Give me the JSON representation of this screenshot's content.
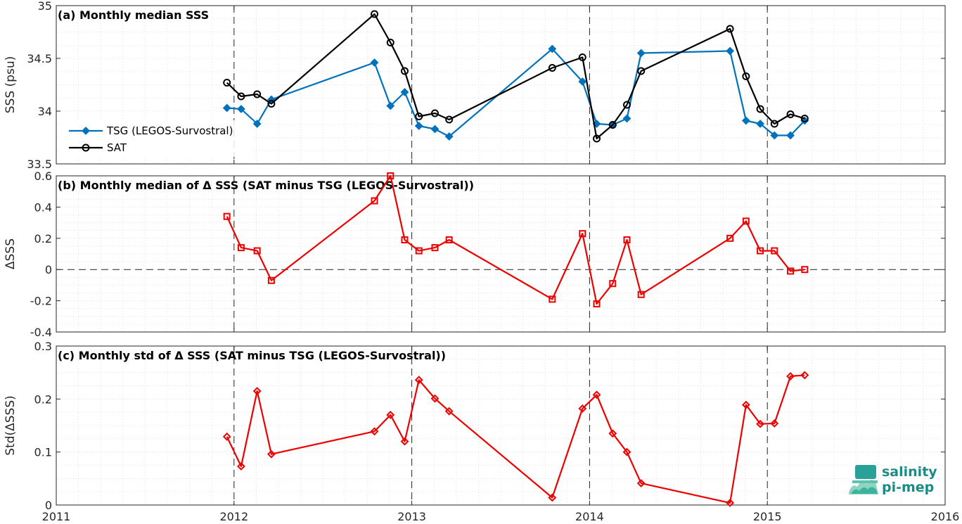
{
  "chart_data": [
    {
      "type": "line",
      "title": "(a) Monthly median SSS",
      "ylabel": "SSS (psu)",
      "xlabel": "",
      "xlim": [
        2011,
        2016
      ],
      "ylim": [
        33.5,
        35
      ],
      "xticks": [
        "2011",
        "2012",
        "2013",
        "2014",
        "2015",
        "2016"
      ],
      "yticks": [
        "33.5",
        "34",
        "34.5",
        "35"
      ],
      "grid": true,
      "legend_position": "lower-left",
      "series": [
        {
          "name": "TSG (LEGOS-Survostral)",
          "color": "#0072bd",
          "marker": "diamond",
          "x": [
            2011.96,
            2012.04,
            2012.13,
            2012.21,
            2012.79,
            2012.88,
            2012.96,
            2013.04,
            2013.13,
            2013.21,
            2013.79,
            2013.96,
            2014.04,
            2014.13,
            2014.21,
            2014.29,
            2014.79,
            2014.88,
            2014.96,
            2015.04,
            2015.13,
            2015.21
          ],
          "y": [
            34.03,
            34.02,
            33.88,
            34.11,
            34.46,
            34.05,
            34.18,
            33.86,
            33.83,
            33.76,
            34.59,
            34.28,
            33.88,
            33.87,
            33.93,
            34.55,
            34.57,
            33.91,
            33.88,
            33.77,
            33.77,
            33.91
          ]
        },
        {
          "name": "SAT",
          "color": "#000000",
          "marker": "circle",
          "x": [
            2011.96,
            2012.04,
            2012.13,
            2012.21,
            2012.79,
            2012.88,
            2012.96,
            2013.04,
            2013.13,
            2013.21,
            2013.79,
            2013.96,
            2014.04,
            2014.13,
            2014.21,
            2014.29,
            2014.79,
            2014.88,
            2014.96,
            2015.04,
            2015.13,
            2015.21
          ],
          "y": [
            34.27,
            34.14,
            34.16,
            34.07,
            34.92,
            34.65,
            34.38,
            33.95,
            33.98,
            33.92,
            34.41,
            34.51,
            33.74,
            33.87,
            34.06,
            34.38,
            34.78,
            34.33,
            34.02,
            33.88,
            33.97,
            33.93
          ]
        }
      ]
    },
    {
      "type": "line",
      "title": "(b) Monthly median of Δ SSS (SAT minus TSG (LEGOS-Survostral))",
      "ylabel": "ΔSSS",
      "xlabel": "",
      "xlim": [
        2011,
        2016
      ],
      "ylim": [
        -0.4,
        0.6
      ],
      "xticks": [
        "2011",
        "2012",
        "2013",
        "2014",
        "2015",
        "2016"
      ],
      "yticks": [
        "-0.4",
        "-0.2",
        "0",
        "0.2",
        "0.4",
        "0.6"
      ],
      "grid": true,
      "series": [
        {
          "color": "#ee0000",
          "marker": "square",
          "x": [
            2011.96,
            2012.04,
            2012.13,
            2012.21,
            2012.79,
            2012.88,
            2012.96,
            2013.04,
            2013.13,
            2013.21,
            2013.79,
            2013.96,
            2014.04,
            2014.13,
            2014.21,
            2014.29,
            2014.79,
            2014.88,
            2014.96,
            2015.04,
            2015.13,
            2015.21
          ],
          "y": [
            0.34,
            0.14,
            0.12,
            -0.07,
            0.44,
            0.6,
            0.19,
            0.12,
            0.14,
            0.19,
            -0.19,
            0.23,
            -0.22,
            -0.09,
            0.19,
            -0.16,
            0.2,
            0.31,
            0.12,
            0.12,
            -0.01,
            0.0
          ]
        }
      ]
    },
    {
      "type": "line",
      "title": "(c) Monthly std of Δ SSS (SAT minus TSG (LEGOS-Survostral))",
      "ylabel": "Std(ΔSSS)",
      "xlabel": "",
      "xlim": [
        2011,
        2016
      ],
      "ylim": [
        0,
        0.3
      ],
      "xticks": [
        "2011",
        "2012",
        "2013",
        "2014",
        "2015",
        "2016"
      ],
      "yticks": [
        "0",
        "0.1",
        "0.2",
        "0.3"
      ],
      "grid": true,
      "series": [
        {
          "color": "#ee0000",
          "marker": "diamond",
          "x": [
            2011.96,
            2012.04,
            2012.13,
            2012.21,
            2012.79,
            2012.88,
            2012.96,
            2013.04,
            2013.13,
            2013.21,
            2013.79,
            2013.96,
            2014.04,
            2014.13,
            2014.21,
            2014.29,
            2014.79,
            2014.88,
            2014.96,
            2015.04,
            2015.13,
            2015.21
          ],
          "y": [
            0.129,
            0.073,
            0.215,
            0.096,
            0.139,
            0.17,
            0.12,
            0.236,
            0.201,
            0.177,
            0.014,
            0.182,
            0.208,
            0.135,
            0.1,
            0.041,
            0.004,
            0.189,
            0.153,
            0.154,
            0.243,
            0.245
          ]
        }
      ]
    }
  ],
  "logo": {
    "line1": "salinity",
    "line2": "pi-mep"
  }
}
